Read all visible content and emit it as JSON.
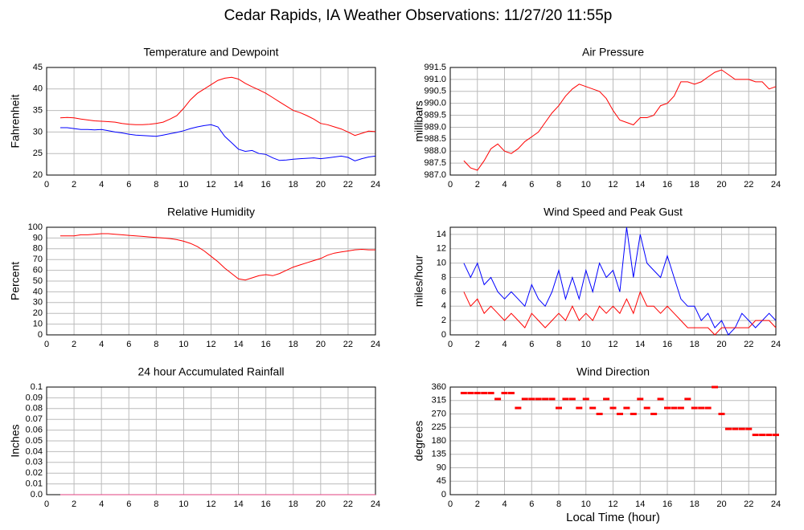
{
  "title": "Cedar Rapids, IA Weather Observations: 11/27/20 11:55p",
  "chart_data": [
    {
      "type": "line",
      "title": "Temperature and Dewpoint",
      "y_label": "Fahrenheit",
      "grid": true,
      "xlim": [
        0,
        24
      ],
      "xticks": [
        0,
        2,
        4,
        6,
        8,
        10,
        12,
        14,
        16,
        18,
        20,
        22,
        24
      ],
      "ylim": [
        20,
        45
      ],
      "yticks": [
        20,
        25,
        30,
        35,
        40,
        45
      ],
      "x": [
        1,
        1.5,
        2,
        2.5,
        3,
        3.5,
        4,
        4.5,
        5,
        5.5,
        6,
        6.5,
        7,
        7.5,
        8,
        8.5,
        9,
        9.5,
        10,
        10.5,
        11,
        11.5,
        12,
        12.5,
        13,
        13.5,
        14,
        14.5,
        15,
        15.5,
        16,
        16.5,
        17,
        17.5,
        18,
        18.5,
        19,
        19.5,
        20,
        20.5,
        21,
        21.5,
        22,
        22.5,
        23,
        23.5,
        24
      ],
      "series": [
        {
          "color": "#ff0000",
          "values": [
            33.3,
            33.4,
            33.3,
            33.0,
            32.8,
            32.6,
            32.5,
            32.4,
            32.3,
            32.0,
            31.8,
            31.7,
            31.7,
            31.8,
            32.0,
            32.3,
            33.0,
            33.8,
            35.5,
            37.5,
            39.0,
            40.0,
            41.0,
            42.0,
            42.5,
            42.7,
            42.3,
            41.3,
            40.5,
            39.8,
            39.0,
            38.0,
            37.0,
            36.0,
            35.0,
            34.5,
            33.8,
            33.0,
            32.0,
            31.7,
            31.2,
            30.7,
            30.0,
            29.2,
            29.7,
            30.2,
            30.1
          ]
        },
        {
          "color": "#0000ff",
          "values": [
            31.0,
            31.0,
            30.8,
            30.6,
            30.6,
            30.5,
            30.6,
            30.3,
            30.0,
            29.8,
            29.5,
            29.3,
            29.2,
            29.1,
            29.0,
            29.3,
            29.6,
            29.9,
            30.3,
            30.8,
            31.2,
            31.5,
            31.7,
            31.2,
            29.0,
            27.5,
            26.0,
            25.5,
            25.7,
            25.0,
            24.8,
            24.0,
            23.4,
            23.5,
            23.7,
            23.8,
            23.9,
            24.0,
            23.8,
            24.0,
            24.2,
            24.4,
            24.1,
            23.3,
            23.8,
            24.2,
            24.4
          ]
        }
      ]
    },
    {
      "type": "line",
      "title": "Air Pressure",
      "y_label": "millibars",
      "grid": true,
      "xlim": [
        0,
        24
      ],
      "xticks": [
        0,
        2,
        4,
        6,
        8,
        10,
        12,
        14,
        16,
        18,
        20,
        22,
        24
      ],
      "ylim": [
        987,
        991.5
      ],
      "yticks": [
        {
          "value": 987,
          "label": "987.0"
        },
        987.5,
        {
          "value": 988,
          "label": "988.0"
        },
        988.5,
        {
          "value": 989,
          "label": "989.0"
        },
        989.5,
        {
          "value": 990,
          "label": "990.0"
        },
        990.5,
        {
          "value": 991,
          "label": "991.0"
        },
        991.5
      ],
      "x": [
        1,
        1.5,
        2,
        2.5,
        3,
        3.5,
        4,
        4.5,
        5,
        5.5,
        6,
        6.5,
        7,
        7.5,
        8,
        8.5,
        9,
        9.5,
        10,
        10.5,
        11,
        11.5,
        12,
        12.5,
        13,
        13.5,
        14,
        14.5,
        15,
        15.5,
        16,
        16.5,
        17,
        17.5,
        18,
        18.5,
        19,
        19.5,
        20,
        20.5,
        21,
        21.5,
        22,
        22.5,
        23,
        23.5,
        24
      ],
      "series": [
        {
          "color": "#ff0000",
          "values": [
            987.6,
            987.3,
            987.2,
            987.6,
            988.1,
            988.3,
            988.0,
            987.9,
            988.1,
            988.4,
            988.6,
            988.8,
            989.2,
            989.6,
            989.9,
            990.3,
            990.6,
            990.8,
            990.7,
            990.6,
            990.5,
            990.2,
            989.7,
            989.3,
            989.2,
            989.1,
            989.4,
            989.4,
            989.5,
            989.9,
            990.0,
            990.3,
            990.9,
            990.9,
            990.8,
            990.9,
            991.1,
            991.3,
            991.4,
            991.2,
            991.0,
            991.0,
            991.0,
            990.9,
            990.9,
            990.6,
            990.7
          ]
        }
      ]
    },
    {
      "type": "line",
      "title": "Relative Humidity",
      "y_label": "Percent",
      "grid": true,
      "xlim": [
        0,
        24
      ],
      "xticks": [
        0,
        2,
        4,
        6,
        8,
        10,
        12,
        14,
        16,
        18,
        20,
        22,
        24
      ],
      "ylim": [
        0,
        100
      ],
      "yticks": [
        0,
        10,
        20,
        30,
        40,
        50,
        60,
        70,
        80,
        90,
        100
      ],
      "x": [
        1,
        1.5,
        2,
        2.5,
        3,
        3.5,
        4,
        4.5,
        5,
        5.5,
        6,
        6.5,
        7,
        7.5,
        8,
        8.5,
        9,
        9.5,
        10,
        10.5,
        11,
        11.5,
        12,
        12.5,
        13,
        13.5,
        14,
        14.5,
        15,
        15.5,
        16,
        16.5,
        17,
        17.5,
        18,
        18.5,
        19,
        19.5,
        20,
        20.5,
        21,
        21.5,
        22,
        22.5,
        23,
        23.5,
        24
      ],
      "series": [
        {
          "color": "#ff0000",
          "values": [
            92,
            92,
            92,
            93,
            93,
            93.5,
            94,
            94,
            93.5,
            93,
            92.5,
            92,
            91.5,
            91,
            90.5,
            90,
            89.5,
            88.5,
            87,
            85,
            82,
            78,
            73,
            68,
            62,
            57,
            52,
            51,
            53,
            55,
            56,
            55,
            57,
            60,
            63,
            65,
            67,
            69,
            71,
            74,
            76,
            77,
            78,
            79,
            79.5,
            79,
            79
          ]
        }
      ]
    },
    {
      "type": "line",
      "title": "Wind Speed and Peak Gust",
      "y_label": "miles/hour",
      "grid": true,
      "xlim": [
        0,
        24
      ],
      "xticks": [
        0,
        2,
        4,
        6,
        8,
        10,
        12,
        14,
        16,
        18,
        20,
        22,
        24
      ],
      "ylim": [
        0,
        15
      ],
      "yticks": [
        0,
        2,
        4,
        6,
        8,
        10,
        12,
        14
      ],
      "x": [
        1,
        1.5,
        2,
        2.5,
        3,
        3.5,
        4,
        4.5,
        5,
        5.5,
        6,
        6.5,
        7,
        7.5,
        8,
        8.5,
        9,
        9.5,
        10,
        10.5,
        11,
        11.5,
        12,
        12.5,
        13,
        13.5,
        14,
        14.5,
        15,
        15.5,
        16,
        16.5,
        17,
        17.5,
        18,
        18.5,
        19,
        19.5,
        20,
        20.5,
        21,
        21.5,
        22,
        22.5,
        23,
        23.5,
        24
      ],
      "series": [
        {
          "color": "#0000ff",
          "values": [
            10,
            8,
            10,
            7,
            8,
            6,
            5,
            6,
            5,
            4,
            7,
            5,
            4,
            6,
            9,
            5,
            8,
            5,
            9,
            6,
            10,
            8,
            9,
            6,
            15,
            8,
            14,
            10,
            9,
            8,
            11,
            8,
            5,
            4,
            4,
            2,
            3,
            1,
            2,
            0,
            1,
            3,
            2,
            1,
            2,
            3,
            2
          ]
        },
        {
          "color": "#ff0000",
          "values": [
            6,
            4,
            5,
            3,
            4,
            3,
            2,
            3,
            2,
            1,
            3,
            2,
            1,
            2,
            3,
            2,
            4,
            2,
            3,
            2,
            4,
            3,
            4,
            3,
            5,
            3,
            6,
            4,
            4,
            3,
            4,
            3,
            2,
            1,
            1,
            1,
            1,
            0,
            1,
            1,
            1,
            1,
            1,
            2,
            2,
            2,
            1
          ]
        }
      ]
    },
    {
      "type": "line",
      "title": "24 hour Accumulated Rainfall",
      "y_label": "Inches",
      "grid": true,
      "xlim": [
        0,
        24
      ],
      "xticks": [
        0,
        2,
        4,
        6,
        8,
        10,
        12,
        14,
        16,
        18,
        20,
        22,
        24
      ],
      "ylim": [
        0,
        0.1
      ],
      "yticks": [
        {
          "value": 0,
          "label": "0.0"
        },
        0.01,
        0.02,
        0.03,
        0.04,
        0.05,
        0.06,
        0.07,
        0.08,
        0.09,
        0.1
      ],
      "x": [
        1,
        24
      ],
      "series": [
        {
          "color": "#e0407f",
          "values": [
            0,
            0
          ]
        }
      ]
    },
    {
      "type": "scatter",
      "title": "Wind Direction",
      "y_label": "degrees",
      "x_label": "Local Time (hour)",
      "grid": true,
      "xlim": [
        0,
        24
      ],
      "xticks": [
        0,
        2,
        4,
        6,
        8,
        10,
        12,
        14,
        16,
        18,
        20,
        22,
        24
      ],
      "ylim": [
        0,
        360
      ],
      "yticks": [
        0,
        45,
        90,
        135,
        180,
        225,
        270,
        315,
        360
      ],
      "x": [
        1,
        1.5,
        2,
        2.5,
        3,
        3.5,
        4,
        4.5,
        5,
        5.5,
        6,
        6.5,
        7,
        7.5,
        8,
        8.5,
        9,
        9.5,
        10,
        10.5,
        11,
        11.5,
        12,
        12.5,
        13,
        13.5,
        14,
        14.5,
        15,
        15.5,
        16,
        16.5,
        17,
        17.5,
        18,
        18.5,
        19,
        19.5,
        20,
        20.5,
        21,
        21.5,
        22,
        22.5,
        23,
        23.5,
        24
      ],
      "series": [
        {
          "color": "#ff0000",
          "values": [
            340,
            340,
            340,
            340,
            340,
            320,
            340,
            340,
            290,
            320,
            320,
            320,
            320,
            320,
            290,
            320,
            320,
            290,
            320,
            290,
            270,
            320,
            290,
            270,
            290,
            270,
            320,
            290,
            270,
            320,
            290,
            290,
            290,
            320,
            290,
            290,
            290,
            360,
            270,
            220,
            220,
            220,
            220,
            200,
            200,
            200,
            200
          ]
        }
      ]
    }
  ]
}
